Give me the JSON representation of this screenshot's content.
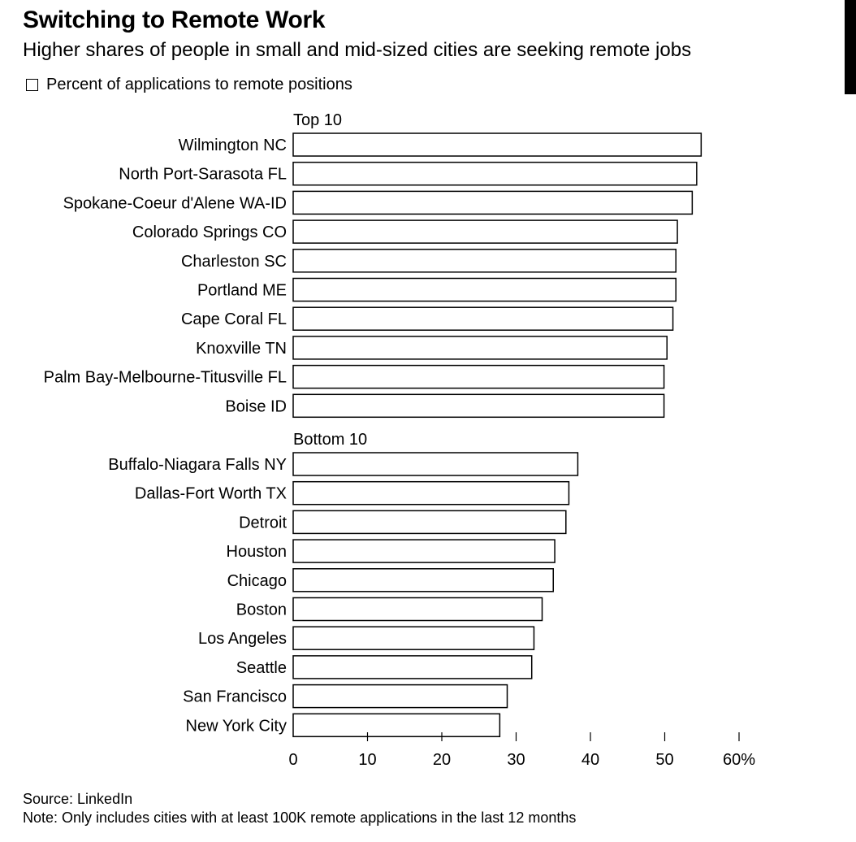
{
  "header": {
    "title": "Switching to Remote Work",
    "subtitle": "Higher shares of people in small and mid-sized cities are seeking remote jobs"
  },
  "legend": {
    "label": "Percent of applications to remote positions"
  },
  "footer": {
    "source": "Source: LinkedIn",
    "note": "Note: Only includes cities with at least 100K remote applications in the last 12 months"
  },
  "chart_data": {
    "type": "bar",
    "orientation": "horizontal",
    "title": "Switching to Remote Work",
    "subtitle": "Higher shares of people in small and mid-sized cities are seeking remote jobs",
    "legend": [
      "Percent of applications to remote positions"
    ],
    "xlim": [
      0,
      60
    ],
    "xticks": [
      0,
      10,
      20,
      30,
      40,
      50,
      60
    ],
    "xtick_labels": [
      "0",
      "10",
      "20",
      "30",
      "40",
      "50",
      "60%"
    ],
    "grid": false,
    "groups": [
      {
        "name": "Top 10",
        "categories": [
          "Wilmington NC",
          "North Port-Sarasota FL",
          "Spokane-Coeur d'Alene WA-ID",
          "Colorado Springs CO",
          "Charleston SC",
          "Portland ME",
          "Cape Coral FL",
          "Knoxville TN",
          "Palm Bay-Melbourne-Titusville FL",
          "Boise ID"
        ],
        "values": [
          54.9,
          54.3,
          53.7,
          51.7,
          51.5,
          51.5,
          51.1,
          50.3,
          49.9,
          49.9
        ]
      },
      {
        "name": "Bottom 10",
        "categories": [
          "Buffalo-Niagara Falls NY",
          "Dallas-Fort Worth TX",
          "Detroit",
          "Houston",
          "Chicago",
          "Boston",
          "Los Angeles",
          "Seattle",
          "San Francisco",
          "New York City"
        ],
        "values": [
          38.3,
          37.1,
          36.7,
          35.2,
          35.0,
          33.5,
          32.4,
          32.1,
          28.8,
          27.8
        ]
      }
    ]
  }
}
